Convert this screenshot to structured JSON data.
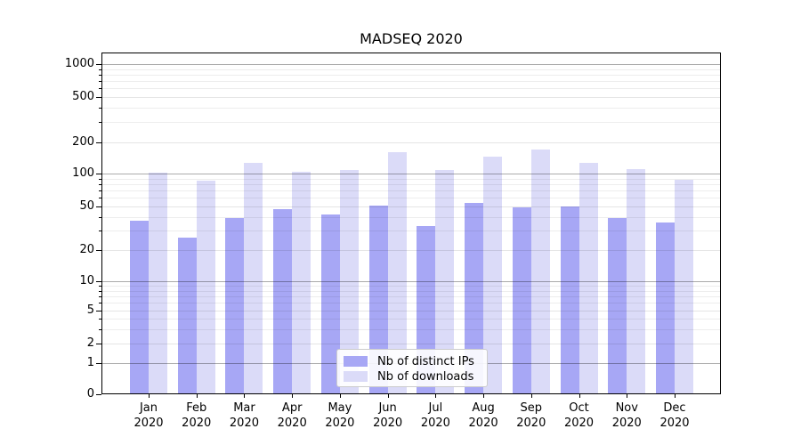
{
  "title": "MADSEQ 2020",
  "chart_data": {
    "type": "bar",
    "title": "MADSEQ 2020",
    "categories": [
      "Jan 2020",
      "Feb 2020",
      "Mar 2020",
      "Apr 2020",
      "May 2020",
      "Jun 2020",
      "Jul 2020",
      "Aug 2020",
      "Sep 2020",
      "Oct 2020",
      "Nov 2020",
      "Dec 2020"
    ],
    "month_labels": [
      "Jan",
      "Feb",
      "Mar",
      "Apr",
      "May",
      "Jun",
      "Jul",
      "Aug",
      "Sep",
      "Oct",
      "Nov",
      "Dec"
    ],
    "year_label": "2020",
    "series": [
      {
        "name": "Nb of distinct IPs",
        "color": "#a7a7f5",
        "values": [
          37,
          26,
          39,
          47,
          42,
          51,
          33,
          54,
          49,
          50,
          39,
          36
        ]
      },
      {
        "name": "Nb of downloads",
        "color": "#dbdbf8",
        "values": [
          102,
          86,
          128,
          105,
          109,
          160,
          108,
          147,
          172,
          127,
          110,
          88
        ]
      }
    ],
    "xlabel": "",
    "ylabel": "",
    "y_scale": "symlog",
    "y_ticks": [
      0,
      1,
      2,
      5,
      10,
      20,
      50,
      100,
      200,
      500,
      1000
    ],
    "y_ticks_emphasized": [
      1,
      10,
      100,
      1000
    ],
    "y_minor_ticks": [
      3,
      4,
      6,
      7,
      8,
      9,
      30,
      40,
      60,
      70,
      80,
      90,
      300,
      400,
      600,
      700,
      800,
      900
    ],
    "ylim": [
      0,
      1400
    ],
    "grid": true,
    "legend_position": "lower center"
  },
  "legend": {
    "items": [
      {
        "label": "Nb of distinct IPs",
        "color": "#a7a7f5"
      },
      {
        "label": "Nb of downloads",
        "color": "#dbdbf8"
      }
    ]
  },
  "colors": {
    "background": "#ffffff",
    "bar_dark": "#a7a7f5",
    "bar_light": "#dbdbf8",
    "grid_major": "#ababab",
    "grid_minor": "#ededed",
    "axis": "#000000",
    "text": "#000000"
  }
}
